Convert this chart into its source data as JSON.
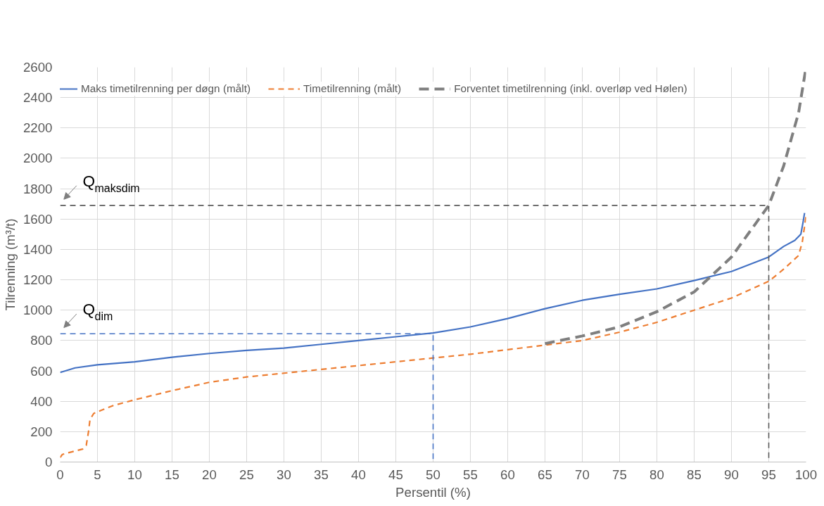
{
  "chart_data": {
    "type": "line",
    "xlabel": "Persentil (%)",
    "ylabel": "Tilrenning (m³/t)",
    "xlim": [
      0,
      100
    ],
    "ylim": [
      0,
      2600
    ],
    "xticks": [
      0,
      5,
      10,
      15,
      20,
      25,
      30,
      35,
      40,
      45,
      50,
      55,
      60,
      65,
      70,
      75,
      80,
      85,
      90,
      95,
      100
    ],
    "yticks": [
      0,
      200,
      400,
      600,
      800,
      1000,
      1200,
      1400,
      1600,
      1800,
      2000,
      2200,
      2400,
      2600
    ],
    "grid": true,
    "legend": "top",
    "marker": "none",
    "series": [
      {
        "name": "Maks timetilrenning per døgn (målt)",
        "color": "#4472c4",
        "line_style": "solid",
        "x": [
          0,
          1,
          2,
          5,
          10,
          15,
          20,
          25,
          30,
          35,
          40,
          45,
          50,
          55,
          60,
          65,
          70,
          75,
          80,
          85,
          90,
          95,
          97,
          98.5,
          99.3,
          99.6,
          99.8
        ],
        "values": [
          590,
          605,
          620,
          640,
          660,
          690,
          715,
          735,
          750,
          775,
          800,
          825,
          850,
          890,
          945,
          1010,
          1065,
          1105,
          1140,
          1195,
          1255,
          1350,
          1420,
          1460,
          1500,
          1580,
          1640
        ]
      },
      {
        "name": "Timetilrenning (målt)",
        "color": "#ed7d31",
        "line_style": "dashed",
        "x": [
          0,
          0.3,
          1,
          3,
          3.5,
          3.8,
          4,
          4.5,
          5,
          7,
          10,
          15,
          20,
          25,
          30,
          35,
          40,
          45,
          50,
          55,
          60,
          65,
          70,
          75,
          80,
          85,
          90,
          95,
          97,
          99,
          99.5,
          100
        ],
        "values": [
          30,
          50,
          60,
          85,
          110,
          200,
          280,
          320,
          330,
          370,
          410,
          470,
          525,
          560,
          585,
          610,
          635,
          660,
          685,
          710,
          740,
          770,
          800,
          855,
          920,
          1000,
          1080,
          1190,
          1270,
          1360,
          1450,
          1620
        ]
      },
      {
        "name": "Forventet timetilrenning (inkl. overløp ved Hølen)",
        "color": "#7f7f7f",
        "line_style": "dashed",
        "x": [
          65,
          70,
          75,
          80,
          85,
          90,
          95,
          97,
          99,
          100
        ],
        "values": [
          780,
          830,
          890,
          990,
          1120,
          1350,
          1690,
          1950,
          2300,
          2600
        ]
      },
      {
        "color": "#4472c4",
        "line_style": "dashed",
        "x": [
          0,
          50,
          50
        ],
        "values": [
          845,
          845,
          0
        ]
      },
      {
        "color": "#595959",
        "line_style": "dashed",
        "x": [
          0,
          95,
          95
        ],
        "values": [
          1690,
          1690,
          0
        ]
      }
    ],
    "annotations": [
      {
        "text": "Q$_{dim}$",
        "x": 0,
        "y": 845
      },
      {
        "text": "Q$_{maksdim}$",
        "x": 0,
        "y": 1690
      }
    ]
  }
}
